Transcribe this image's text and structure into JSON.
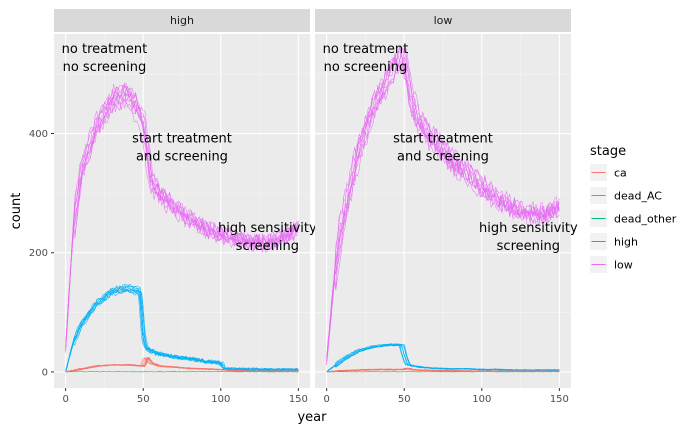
{
  "chart_data": {
    "type": "line",
    "xlabel": "year",
    "ylabel": "count",
    "xlim": [
      0,
      150
    ],
    "ylim": [
      0,
      540
    ],
    "x_ticks": [
      0,
      50,
      100,
      150
    ],
    "y_ticks": [
      0,
      200,
      400
    ],
    "grid": true,
    "legend": {
      "title": "stage",
      "placement": "right",
      "entries": [
        {
          "name": "ca",
          "color": "#F8766D"
        },
        {
          "name": "dead_AC",
          "color": "#A3A500"
        },
        {
          "name": "dead_other",
          "color": "#00BF7D"
        },
        {
          "name": "high",
          "color": "#00B0F6"
        },
        {
          "name": "low",
          "color": "#E76BF3"
        }
      ]
    },
    "replicates": 10,
    "annotations": [
      {
        "lines": [
          "no treatment",
          "no screening"
        ],
        "x": 25,
        "y": 535
      },
      {
        "lines": [
          "start treatment",
          "and screening"
        ],
        "x": 75,
        "y": 385
      },
      {
        "lines": [
          "high sensitivity",
          "screening"
        ],
        "x": 130,
        "y": 235
      }
    ],
    "panels": [
      {
        "label": "high",
        "series": [
          {
            "name": "low",
            "x": [
              0,
              5,
              10,
              20,
              30,
              40,
              45,
              50,
              55,
              60,
              70,
              80,
              90,
              100,
              110,
              120,
              130,
              140,
              150
            ],
            "values": [
              40,
              240,
              335,
              410,
              455,
              465,
              445,
              420,
              320,
              300,
              275,
              255,
              240,
              230,
              222,
              218,
              215,
              225,
              240
            ]
          },
          {
            "name": "high",
            "x": [
              0,
              5,
              10,
              20,
              30,
              40,
              48,
              50,
              52,
              55,
              60,
              70,
              80,
              90,
              100,
              102,
              110,
              120,
              130,
              140,
              150
            ],
            "values": [
              0,
              50,
              80,
              115,
              135,
              140,
              135,
              60,
              40,
              35,
              30,
              25,
              22,
              18,
              15,
              5,
              4,
              4,
              3,
              3,
              3
            ]
          },
          {
            "name": "ca",
            "x": [
              0,
              10,
              20,
              30,
              40,
              50,
              52,
              55,
              60,
              80,
              100,
              110,
              120,
              150
            ],
            "values": [
              0,
              5,
              10,
              12,
              12,
              10,
              25,
              15,
              10,
              6,
              4,
              2,
              1,
              1
            ]
          },
          {
            "name": "dead_AC",
            "x": [
              0,
              150
            ],
            "values": [
              0,
              0
            ]
          },
          {
            "name": "dead_other",
            "x": [
              0,
              150
            ],
            "values": [
              0,
              0
            ]
          }
        ]
      },
      {
        "label": "low",
        "series": [
          {
            "name": "low",
            "x": [
              0,
              5,
              10,
              20,
              30,
              40,
              45,
              50,
              55,
              60,
              70,
              80,
              90,
              100,
              110,
              120,
              130,
              140,
              150
            ],
            "values": [
              20,
              160,
              250,
              365,
              445,
              495,
              520,
              525,
              450,
              415,
              385,
              355,
              335,
              310,
              290,
              275,
              265,
              265,
              275
            ]
          },
          {
            "name": "high",
            "x": [
              0,
              5,
              10,
              20,
              30,
              40,
              48,
              50,
              52,
              55,
              60,
              70,
              80,
              90,
              100,
              110,
              120,
              130,
              140,
              150
            ],
            "values": [
              0,
              10,
              20,
              35,
              42,
              45,
              45,
              25,
              12,
              10,
              8,
              6,
              5,
              5,
              4,
              4,
              3,
              3,
              3,
              3
            ]
          },
          {
            "name": "ca",
            "x": [
              0,
              10,
              20,
              30,
              40,
              50,
              52,
              55,
              60,
              80,
              100,
              150
            ],
            "values": [
              0,
              2,
              3,
              4,
              4,
              4,
              6,
              4,
              3,
              2,
              1,
              1
            ]
          },
          {
            "name": "dead_AC",
            "x": [
              0,
              150
            ],
            "values": [
              0,
              0
            ]
          },
          {
            "name": "dead_other",
            "x": [
              0,
              150
            ],
            "values": [
              0,
              0
            ]
          }
        ]
      }
    ]
  }
}
